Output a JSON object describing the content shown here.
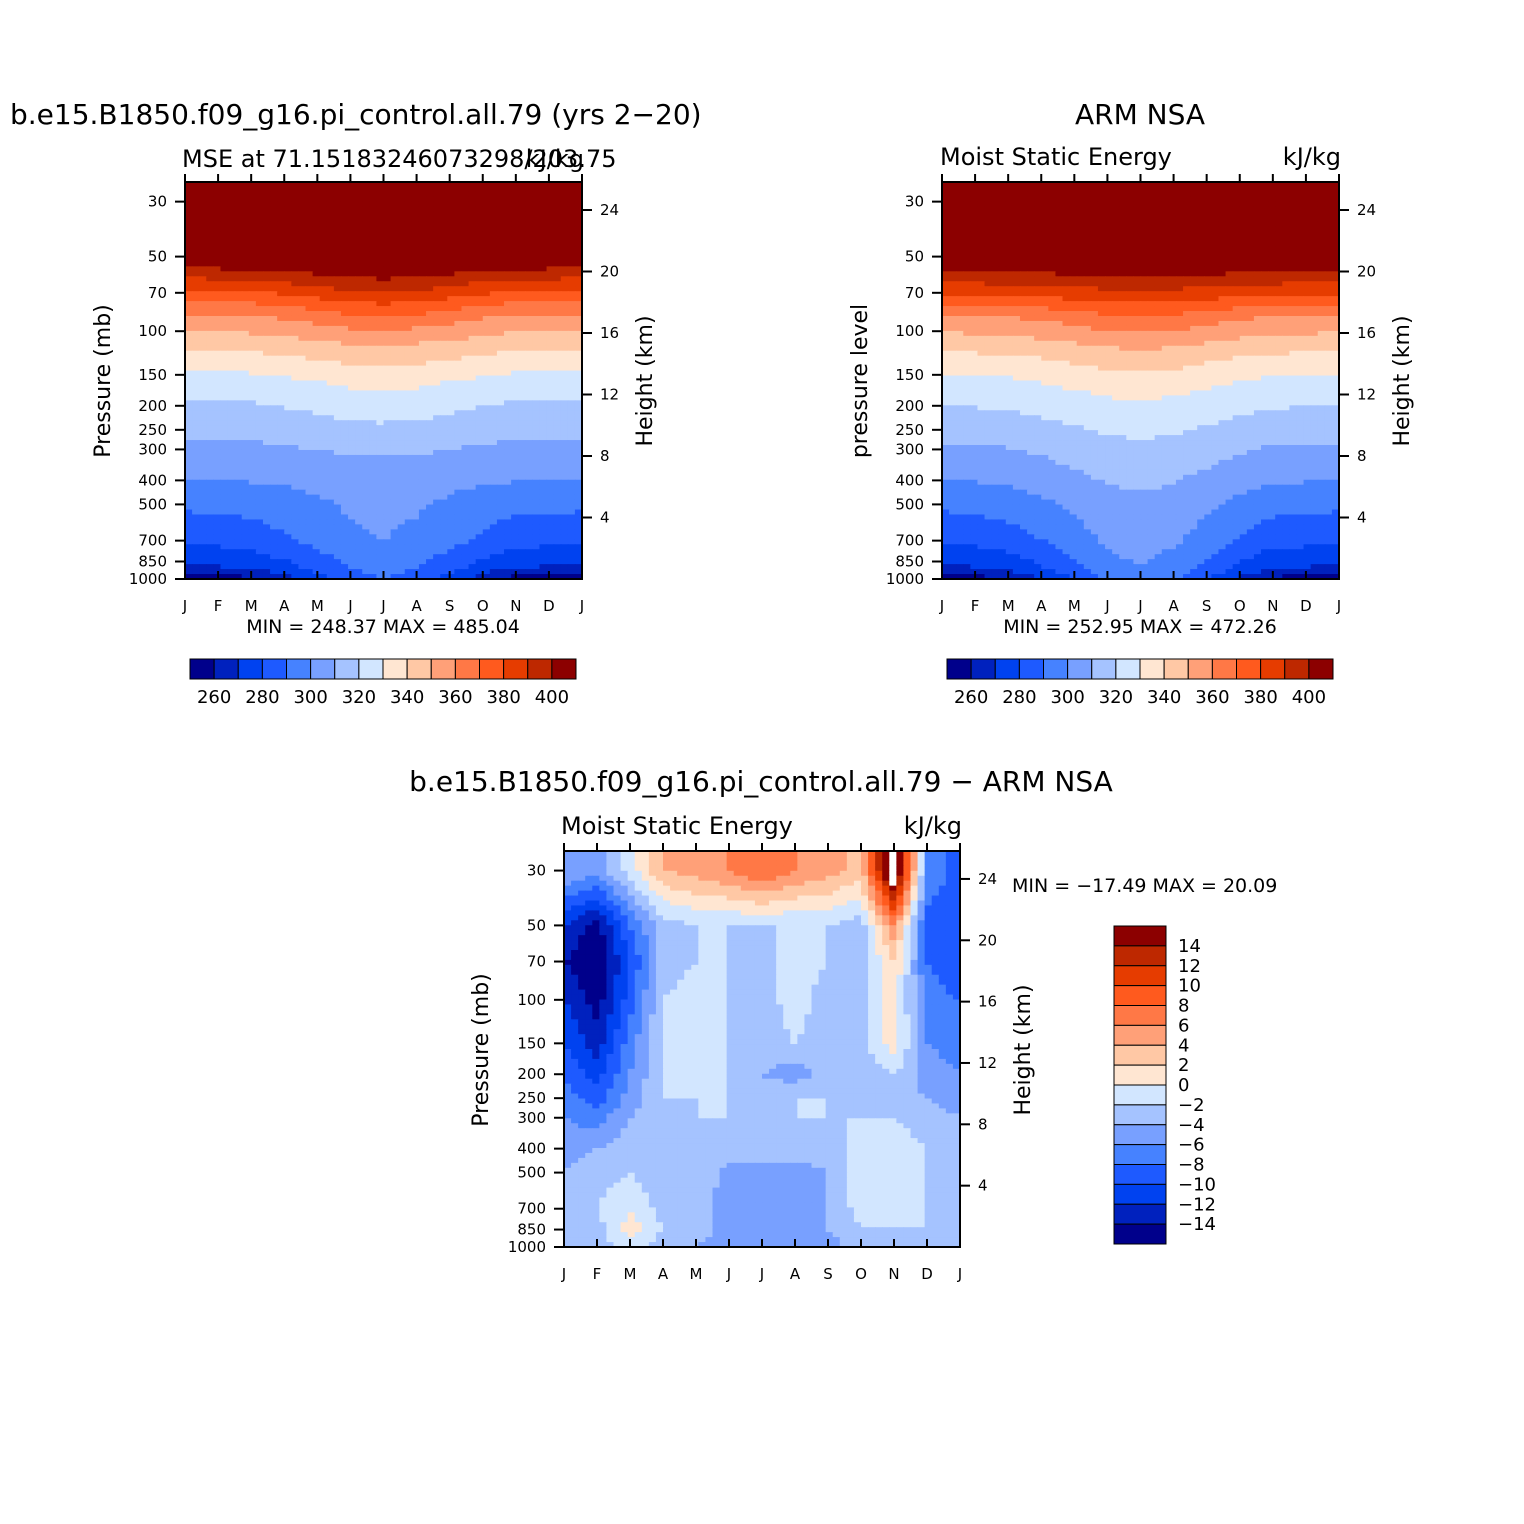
{
  "palette": [
    "#00008b",
    "#0021be",
    "#0042f0",
    "#1e5aff",
    "#4682ff",
    "#78a0ff",
    "#a5c3ff",
    "#d2e6ff",
    "#ffe6d2",
    "#ffc8a5",
    "#ffa078",
    "#ff7846",
    "#ff5a1e",
    "#e63c00",
    "#be2800",
    "#8c0000"
  ],
  "chart_data": [
    {
      "type": "contour",
      "title": "b.e15.B1850.f09_g16.pi_control.all.79 (yrs 2−20)",
      "subtitle_left": "MSE at 71.15183246073298/203.75",
      "subtitle_right": "kJ/kg",
      "ylabel": "Pressure (mb)",
      "ylabel_right": "Height (km)",
      "xticks": [
        "J",
        "F",
        "M",
        "A",
        "M",
        "J",
        "J",
        "A",
        "S",
        "O",
        "N",
        "D",
        "J"
      ],
      "pressure_ticks": [
        30,
        50,
        70,
        100,
        150,
        200,
        250,
        300,
        400,
        500,
        700,
        850,
        1000
      ],
      "height_ticks": [
        24,
        20,
        16,
        12,
        8,
        4
      ],
      "ylim": [
        1000,
        25
      ],
      "minmax_text": "MIN = 248.37 MAX = 485.04",
      "min": 248.37,
      "max": 485.04,
      "colorbar": {
        "levels": [
          250,
          260,
          270,
          280,
          290,
          300,
          310,
          320,
          330,
          340,
          350,
          360,
          370,
          380,
          390,
          400,
          410
        ],
        "labels": [
          "260",
          "280",
          "300",
          "320",
          "340",
          "360",
          "380",
          "400"
        ]
      },
      "contour_pressure_profiles": {
        "winter": [
          [
            1000,
            252
          ],
          [
            900,
            268
          ],
          [
            700,
            282
          ],
          [
            500,
            292
          ],
          [
            400,
            300
          ],
          [
            300,
            307
          ],
          [
            250,
            312
          ],
          [
            200,
            318
          ],
          [
            160,
            325
          ],
          [
            130,
            335
          ],
          [
            110,
            345
          ],
          [
            90,
            355
          ],
          [
            80,
            365
          ],
          [
            70,
            377
          ],
          [
            60,
            392
          ],
          [
            50,
            412
          ]
        ],
        "summer": [
          [
            1000,
            290
          ],
          [
            700,
            300
          ],
          [
            400,
            304
          ],
          [
            300,
            312
          ],
          [
            250,
            318
          ],
          [
            200,
            325
          ],
          [
            160,
            333
          ],
          [
            130,
            343
          ],
          [
            110,
            352
          ],
          [
            95,
            363
          ],
          [
            80,
            377
          ],
          [
            70,
            390
          ],
          [
            60,
            402
          ],
          [
            50,
            420
          ]
        ]
      },
      "season_weights": [
        0.0,
        0.05,
        0.15,
        0.35,
        0.62,
        0.9,
        1.0,
        0.88,
        0.62,
        0.32,
        0.08,
        0.05,
        0.0
      ]
    },
    {
      "type": "contour",
      "title": "ARM NSA",
      "subtitle_left": "Moist Static Energy",
      "subtitle_right": "kJ/kg",
      "ylabel": "pressure level",
      "ylabel_right": "Height (km)",
      "xticks": [
        "J",
        "F",
        "M",
        "A",
        "M",
        "J",
        "J",
        "A",
        "S",
        "O",
        "N",
        "D",
        "J"
      ],
      "pressure_ticks": [
        30,
        50,
        70,
        100,
        150,
        200,
        250,
        300,
        400,
        500,
        700,
        850,
        1000
      ],
      "height_ticks": [
        24,
        20,
        16,
        12,
        8,
        4
      ],
      "ylim": [
        1000,
        25
      ],
      "minmax_text": "MIN = 252.95 MAX = 472.26",
      "min": 252.95,
      "max": 472.26,
      "colorbar": {
        "levels": [
          250,
          260,
          270,
          280,
          290,
          300,
          310,
          320,
          330,
          340,
          350,
          360,
          370,
          380,
          390,
          400,
          410
        ],
        "labels": [
          "260",
          "280",
          "300",
          "320",
          "340",
          "360",
          "380",
          "400"
        ]
      },
      "contour_pressure_profiles": {
        "winter": [
          [
            1000,
            254
          ],
          [
            900,
            268
          ],
          [
            700,
            282
          ],
          [
            500,
            292
          ],
          [
            400,
            300
          ],
          [
            300,
            308
          ],
          [
            250,
            314
          ],
          [
            200,
            320
          ],
          [
            160,
            327
          ],
          [
            130,
            336
          ],
          [
            110,
            346
          ],
          [
            90,
            356
          ],
          [
            80,
            368
          ],
          [
            70,
            382
          ],
          [
            60,
            396
          ],
          [
            50,
            414
          ]
        ],
        "summer": [
          [
            1000,
            298
          ],
          [
            700,
            304
          ],
          [
            500,
            308
          ],
          [
            400,
            312
          ],
          [
            300,
            318
          ],
          [
            250,
            322
          ],
          [
            200,
            328
          ],
          [
            160,
            336
          ],
          [
            130,
            345
          ],
          [
            110,
            354
          ],
          [
            95,
            364
          ],
          [
            80,
            376
          ],
          [
            70,
            388
          ],
          [
            60,
            400
          ],
          [
            50,
            418
          ]
        ]
      },
      "season_weights": [
        0.0,
        0.05,
        0.15,
        0.35,
        0.62,
        0.9,
        1.0,
        0.88,
        0.62,
        0.32,
        0.08,
        0.05,
        0.0
      ]
    },
    {
      "type": "contour",
      "title": "b.e15.B1850.f09_g16.pi_control.all.79 − ARM NSA",
      "subtitle_left": "Moist Static Energy",
      "subtitle_right": "kJ/kg",
      "ylabel": "Pressure (mb)",
      "ylabel_right": "Height (km)",
      "xticks": [
        "J",
        "F",
        "M",
        "A",
        "M",
        "J",
        "J",
        "A",
        "S",
        "O",
        "N",
        "D",
        "J"
      ],
      "pressure_ticks": [
        30,
        50,
        70,
        100,
        150,
        200,
        250,
        300,
        400,
        500,
        700,
        850,
        1000
      ],
      "height_ticks": [
        24,
        20,
        16,
        12,
        8,
        4
      ],
      "ylim": [
        1000,
        25
      ],
      "minmax_text": "MIN = −17.49 MAX =   20.09",
      "min": -17.49,
      "max": 20.09,
      "colorbar": {
        "levels": [
          -16,
          -14,
          -12,
          -10,
          -8,
          -6,
          -4,
          -2,
          0,
          2,
          4,
          6,
          8,
          10,
          12,
          14,
          16
        ],
        "labels": [
          "14",
          "12",
          "10",
          "8",
          "6",
          "4",
          "2",
          "0",
          "−2",
          "−4",
          "−6",
          "−8",
          "−10",
          "−12",
          "−14"
        ]
      },
      "difference_grid": {
        "months": [
          "J",
          "F",
          "M",
          "A",
          "M",
          "J",
          "J",
          "A",
          "S",
          "O",
          "N",
          "D",
          "J"
        ],
        "pressure_levels": [
          30,
          50,
          70,
          100,
          150,
          200,
          250,
          300,
          400,
          500,
          700,
          850,
          1000
        ],
        "values": [
          [
            -4,
            -5,
            -1,
            4,
            5,
            6,
            8,
            6,
            5,
            3,
            20,
            -6,
            -9
          ],
          [
            -12,
            -15,
            -8,
            -3,
            -2,
            -2,
            -2,
            -2,
            -2,
            -3,
            6,
            -9,
            -10
          ],
          [
            -14,
            -16,
            -10,
            -3,
            -2,
            -2,
            -3,
            -1,
            -2,
            -3,
            2,
            -8,
            -10
          ],
          [
            -12,
            -15,
            -9,
            -2,
            -1,
            -2,
            -3,
            -1,
            -3,
            -3,
            1,
            -7,
            -8
          ],
          [
            -10,
            -13,
            -7,
            -2,
            -1,
            -2,
            -3,
            -2,
            -3,
            -3,
            1,
            -6,
            -7
          ],
          [
            -8,
            -11,
            -6,
            -2,
            -2,
            -2,
            -4,
            -5,
            -3,
            -3,
            -2,
            -5,
            -6
          ],
          [
            -7,
            -9,
            -5,
            -2,
            -2,
            -2,
            -3,
            -2,
            -2,
            -3,
            -3,
            -4,
            -5
          ],
          [
            -6,
            -7,
            -4,
            -3,
            -2,
            -2,
            -2,
            -2,
            -2,
            -2,
            -2,
            -3,
            -4
          ],
          [
            -5,
            -4,
            -3,
            -4,
            -2,
            -3,
            -3,
            -3,
            -3,
            -1,
            -1,
            -2,
            -3
          ],
          [
            -4,
            -3,
            -2,
            -4,
            -2,
            -5,
            -5,
            -5,
            -4,
            -1,
            -1,
            -2,
            -3
          ],
          [
            -3,
            -2,
            0,
            -3,
            -3,
            -5,
            -5,
            -5,
            -4,
            -1,
            -1,
            -2,
            -3
          ],
          [
            -3,
            -3,
            1,
            -2,
            -3,
            -5,
            -5,
            -6,
            -4,
            -2,
            -2,
            -2,
            -3
          ],
          [
            -3,
            -3,
            -1,
            -3,
            -4,
            -5,
            -5,
            -6,
            -5,
            -3,
            -3,
            -3,
            -3
          ]
        ]
      }
    }
  ]
}
